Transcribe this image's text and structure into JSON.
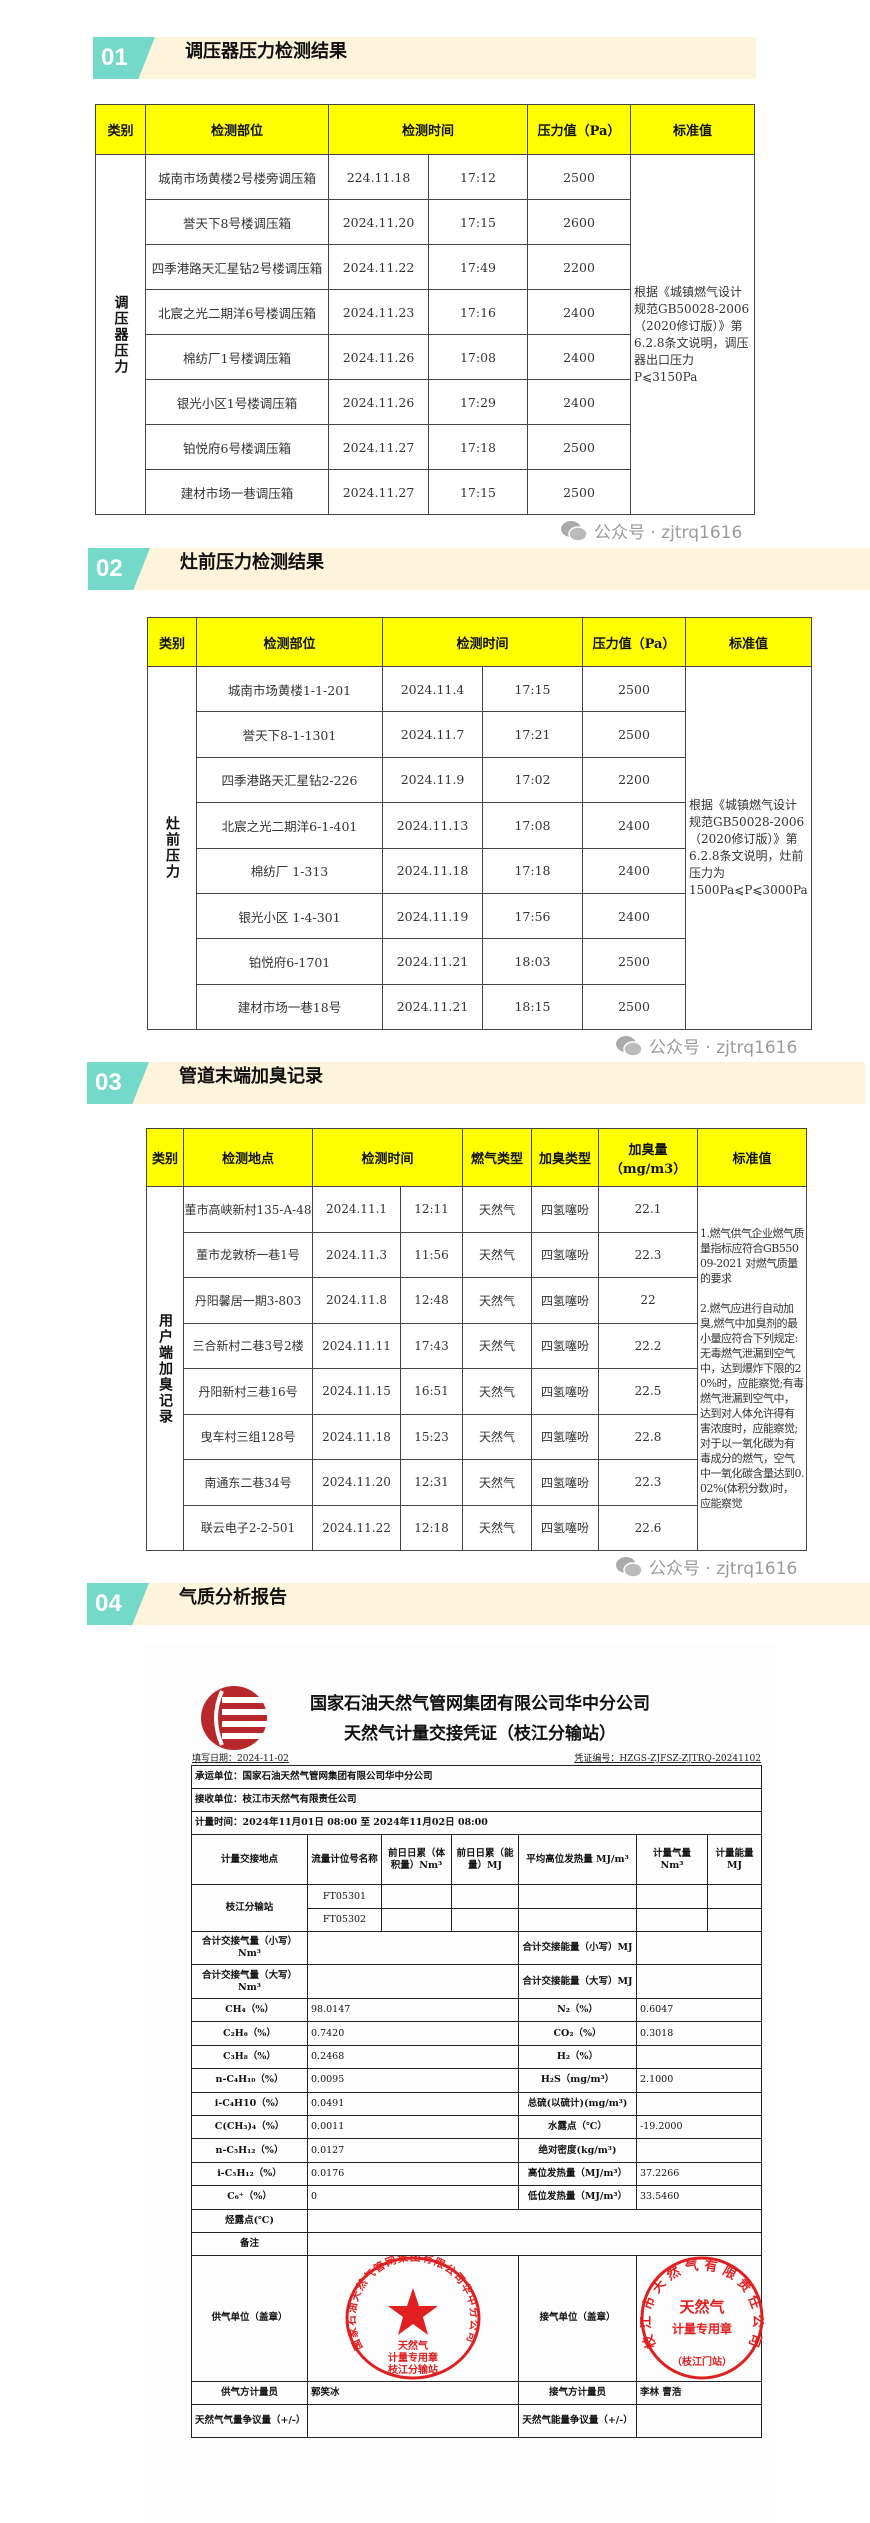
{
  "sections": [
    {
      "number": "01",
      "title": "调压器压力检测结果"
    },
    {
      "number": "02",
      "title": "灶前压力检测结果"
    },
    {
      "number": "03",
      "title": "管道末端加臭记录"
    },
    {
      "number": "04",
      "title": "气质分析报告"
    }
  ],
  "watermark": {
    "icon": "wechat-icon",
    "text": "公众号 · zjtrq1616"
  },
  "colors": {
    "teal": "#74d9c9",
    "banner_bg": "#fef4dc",
    "header_yellow": "#ffff00",
    "stamp_red": "#e02020"
  },
  "regulator_table": {
    "headers": [
      "类别",
      "检测部位",
      "检测时间",
      "压力值（Pa）",
      "标准值"
    ],
    "category": "调压器压力",
    "standard": "根据《城镇燃气设计规范GB50028-2006（2020修订版）》第6.2.8条文说明，调压器出口压力P⩽3150Pa",
    "rows": [
      {
        "location": "城南市场黄楼2号楼旁调压箱",
        "date": "224.11.18",
        "time": "17:12",
        "pressure": "2500"
      },
      {
        "location": "誉天下8号楼调压箱",
        "date": "2024.11.20",
        "time": "17:15",
        "pressure": "2600"
      },
      {
        "location": "四季港路天汇星钻2号楼调压箱",
        "date": "2024.11.22",
        "time": "17:49",
        "pressure": "2200"
      },
      {
        "location": "北宸之光二期洋6号楼调压箱",
        "date": "2024.11.23",
        "time": "17:16",
        "pressure": "2400"
      },
      {
        "location": "棉纺厂1号楼调压箱",
        "date": "2024.11.26",
        "time": "17:08",
        "pressure": "2400"
      },
      {
        "location": "银光小区1号楼调压箱",
        "date": "2024.11.26",
        "time": "17:29",
        "pressure": "2400"
      },
      {
        "location": "铂悦府6号楼调压箱",
        "date": "2024.11.27",
        "time": "17:18",
        "pressure": "2500"
      },
      {
        "location": "建材市场一巷调压箱",
        "date": "2024.11.27",
        "time": "17:15",
        "pressure": "2500"
      }
    ]
  },
  "stove_table": {
    "headers": [
      "类别",
      "检测部位",
      "检测时间",
      "压力值（Pa）",
      "标准值"
    ],
    "category": "灶前压力",
    "standard": "根据《城镇燃气设计规范GB50028-2006（2020修订版）》第6.2.8条文说明，灶前压力为1500Pa⩽P⩽3000Pa",
    "rows": [
      {
        "location": "城南市场黄楼1-1-201",
        "date": "2024.11.4",
        "time": "17:15",
        "pressure": "2500"
      },
      {
        "location": "誉天下8-1-1301",
        "date": "2024.11.7",
        "time": "17:21",
        "pressure": "2500"
      },
      {
        "location": "四季港路天汇星钻2-226",
        "date": "2024.11.9",
        "time": "17:02",
        "pressure": "2200"
      },
      {
        "location": "北宸之光二期洋6-1-401",
        "date": "2024.11.13",
        "time": "17:08",
        "pressure": "2400"
      },
      {
        "location": "棉纺厂 1-313",
        "date": "2024.11.18",
        "time": "17:18",
        "pressure": "2400"
      },
      {
        "location": "银光小区 1-4-301",
        "date": "2024.11.19",
        "time": "17:56",
        "pressure": "2400"
      },
      {
        "location": "铂悦府6-1701",
        "date": "2024.11.21",
        "time": "18:03",
        "pressure": "2500"
      },
      {
        "location": "建材市场一巷18号",
        "date": "2024.11.21",
        "time": "18:15",
        "pressure": "2500"
      }
    ]
  },
  "odor_table": {
    "headers": [
      "类别",
      "检测地点",
      "检测时间",
      "燃气类型",
      "加臭类型",
      "加臭量（mg/m3）",
      "标准值"
    ],
    "category": "用户端加臭记录",
    "standard": "1.燃气供气企业燃气质量指标应符合GB55009-2021 对燃气质量的要求\n\n2.燃气应进行自动加臭,燃气中加臭剂的最小量应符合下列规定:无毒燃气泄漏到空气中，达到爆炸下限的20%时，应能察觉;有毒燃气泄漏到空气中，达到对人体允许得有害浓度时，应能察觉;对于以一氧化碳为有毒成分的燃气，空气中一氧化碳含量达到0.02%(体积分数)时，应能察觉",
    "rows": [
      {
        "location": "董市高峡新村135-A-48",
        "date": "2024.11.1",
        "time": "12:11",
        "gas": "天然气",
        "odorant": "四氢噻吩",
        "amount": "22.1"
      },
      {
        "location": "董市龙敦桥一巷1号",
        "date": "2024.11.3",
        "time": "11:56",
        "gas": "天然气",
        "odorant": "四氢噻吩",
        "amount": "22.3"
      },
      {
        "location": "丹阳馨居一期3-803",
        "date": "2024.11.8",
        "time": "12:48",
        "gas": "天然气",
        "odorant": "四氢噻吩",
        "amount": "22"
      },
      {
        "location": "三合新村二巷3号2楼",
        "date": "2024.11.11",
        "time": "17:43",
        "gas": "天然气",
        "odorant": "四氢噻吩",
        "amount": "22.2"
      },
      {
        "location": "丹阳新村三巷16号",
        "date": "2024.11.15",
        "time": "16:51",
        "gas": "天然气",
        "odorant": "四氢噻吩",
        "amount": "22.5"
      },
      {
        "location": "曳车村三组128号",
        "date": "2024.11.18",
        "time": "15:23",
        "gas": "天然气",
        "odorant": "四氢噻吩",
        "amount": "22.8"
      },
      {
        "location": "南通东二巷34号",
        "date": "2024.11.20",
        "time": "12:31",
        "gas": "天然气",
        "odorant": "四氢噻吩",
        "amount": "22.3"
      },
      {
        "location": "联云电子2-2-501",
        "date": "2024.11.22",
        "time": "12:18",
        "gas": "天然气",
        "odorant": "四氢噻吩",
        "amount": "22.6"
      }
    ]
  },
  "report": {
    "company": "国家石油天然气管网集团有限公司华中分公司",
    "title": "天然气计量交接凭证（枝江分输站）",
    "fill_date": "填写日期：2024-11-02",
    "voucher_no": "凭证编号：HZGS-ZJFSZ-ZJTRQ-20241102",
    "carrier": "承运单位：国家石油天然气管网集团有限公司华中分公司",
    "receiver": "接收单位：枝江市天然气有限责任公司",
    "period": "计量时间：2024年11月01日 08:00 至 2024年11月02日 08:00",
    "headers": [
      "计量交接地点",
      "流量计位号名称",
      "前日日累（体积量）Nm³",
      "前日日累（能量）MJ",
      "平均高位发热量 MJ/m³",
      "计量气量 Nm³",
      "计量能量 MJ"
    ],
    "station": "枝江分输站",
    "meters": [
      "FT05301",
      "FT05302"
    ],
    "total_volume_small": "合计交接气量（小写）Nm³",
    "total_energy_small": "合计交接能量（小写）MJ",
    "total_volume_big": "合计交接气量（大写）Nm³",
    "total_energy_big": "合计交接能量（大写）MJ",
    "composition": [
      {
        "l": "CH₄（%）",
        "lv": "98.0147",
        "r": "N₂（%）",
        "rv": "0.6047"
      },
      {
        "l": "C₂H₆（%）",
        "lv": "0.7420",
        "r": "CO₂（%）",
        "rv": "0.3018"
      },
      {
        "l": "C₃H₈（%）",
        "lv": "0.2468",
        "r": "H₂（%）",
        "rv": ""
      },
      {
        "l": "n-C₄H₁₀（%）",
        "lv": "0.0095",
        "r": "H₂S（mg/m³）",
        "rv": "2.1000"
      },
      {
        "l": "i-C₄H10（%）",
        "lv": "0.0491",
        "r": "总硫(以硫计)(mg/m³)",
        "rv": ""
      },
      {
        "l": "C(CH₃)₄（%）",
        "lv": "0.0011",
        "r": "水露点（℃）",
        "rv": "-19.2000"
      },
      {
        "l": "n-C₅H₁₂（%）",
        "lv": "0.0127",
        "r": "绝对密度(kg/m³)",
        "rv": ""
      },
      {
        "l": "i-C₅H₁₂（%）",
        "lv": "0.0176",
        "r": "高位发热量（MJ/m³）",
        "rv": "37.2266"
      },
      {
        "l": "C₆⁺（%）",
        "lv": "0",
        "r": "低位发热量（MJ/m³）",
        "rv": "33.5460"
      }
    ],
    "hydrocarbon_dew": "烃露点(℃)",
    "remarks": "备注",
    "supplier_label": "供气单位（盖章）",
    "receiver_label": "接气单位（盖章）",
    "supplier_meter_label": "供气方计量员",
    "supplier_meter": "郭笑冰",
    "receiver_meter_label": "接气方计量员",
    "receiver_meter": "李林  曹浩",
    "dispute_volume": "天然气气量争议量（+/-）",
    "dispute_energy": "天然气能量争议量（+/-）",
    "stamp_supplier": {
      "ring": "国家石油天然气管网集团有限公司华中分公司",
      "line1": "天然气",
      "line2": "计量专用章",
      "line3": "枝江分输站"
    },
    "stamp_receiver": {
      "ring": "枝江市天然气有限责任公司",
      "line1": "天然气",
      "line2": "计量专用章",
      "line3": "（枝江门站）"
    }
  }
}
